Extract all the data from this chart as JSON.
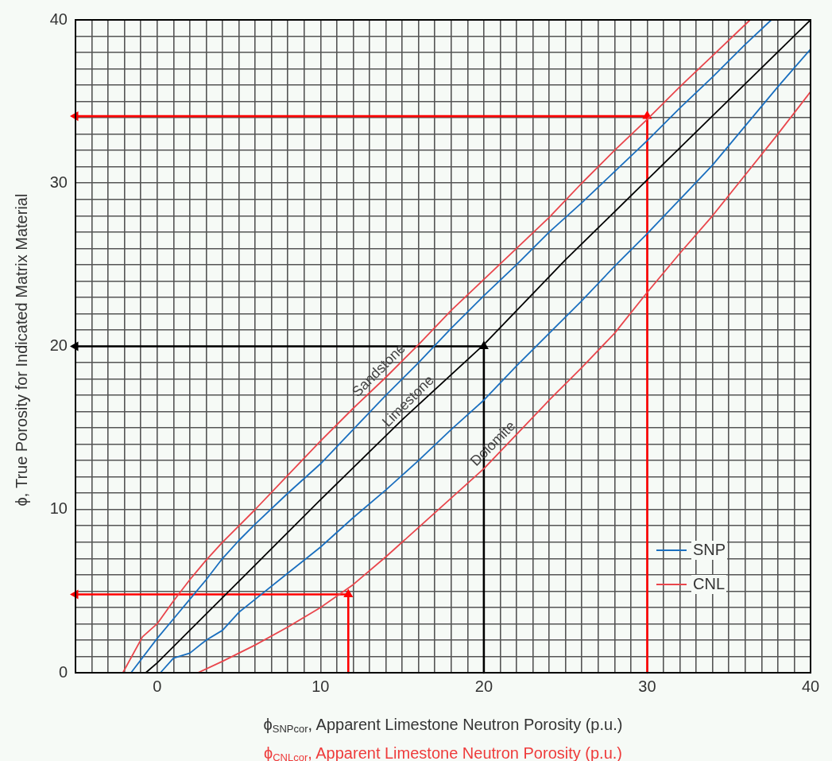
{
  "chart_data": {
    "type": "line",
    "xlabel": "ϕ$_{SNPcor}$, Apparent Limestone Neutron Porosity (p.u.)",
    "ylabel": "ϕ, True Porosity for Indicated Matrix Material",
    "xlim": [
      -5,
      40
    ],
    "ylim": [
      0,
      40
    ],
    "xticks": [
      {
        "value": -5,
        "label": null
      },
      {
        "value": -4,
        "label": null
      },
      {
        "value": -3,
        "label": null
      },
      {
        "value": -2,
        "label": null
      },
      {
        "value": -1,
        "label": null
      },
      0,
      {
        "value": 1,
        "label": null
      },
      {
        "value": 2,
        "label": null
      },
      {
        "value": 3,
        "label": null
      },
      {
        "value": 4,
        "label": null
      },
      {
        "value": 5,
        "label": null
      },
      {
        "value": 6,
        "label": null
      },
      {
        "value": 7,
        "label": null
      },
      {
        "value": 8,
        "label": null
      },
      {
        "value": 9,
        "label": null
      },
      10,
      {
        "value": 11,
        "label": null
      },
      {
        "value": 12,
        "label": null
      },
      {
        "value": 13,
        "label": null
      },
      {
        "value": 14,
        "label": null
      },
      {
        "value": 15,
        "label": null
      },
      {
        "value": 16,
        "label": null
      },
      {
        "value": 17,
        "label": null
      },
      {
        "value": 18,
        "label": null
      },
      {
        "value": 19,
        "label": null
      },
      20,
      {
        "value": 21,
        "label": null
      },
      {
        "value": 22,
        "label": null
      },
      {
        "value": 23,
        "label": null
      },
      {
        "value": 24,
        "label": null
      },
      {
        "value": 25,
        "label": null
      },
      {
        "value": 26,
        "label": null
      },
      {
        "value": 27,
        "label": null
      },
      {
        "value": 28,
        "label": null
      },
      {
        "value": 29,
        "label": null
      },
      30,
      {
        "value": 31,
        "label": null
      },
      {
        "value": 32,
        "label": null
      },
      {
        "value": 33,
        "label": null
      },
      {
        "value": 34,
        "label": null
      },
      {
        "value": 35,
        "label": null
      },
      {
        "value": 36,
        "label": null
      },
      {
        "value": 37,
        "label": null
      },
      {
        "value": 38,
        "label": null
      },
      {
        "value": 39,
        "label": null
      },
      40
    ],
    "yticks": [
      0,
      {
        "value": 1,
        "label": null
      },
      {
        "value": 2,
        "label": null
      },
      {
        "value": 3,
        "label": null
      },
      {
        "value": 4,
        "label": null
      },
      {
        "value": 5,
        "label": null
      },
      {
        "value": 6,
        "label": null
      },
      {
        "value": 7,
        "label": null
      },
      {
        "value": 8,
        "label": null
      },
      {
        "value": 9,
        "label": null
      },
      10,
      {
        "value": 11,
        "label": null
      },
      {
        "value": 12,
        "label": null
      },
      {
        "value": 13,
        "label": null
      },
      {
        "value": 14,
        "label": null
      },
      {
        "value": 15,
        "label": null
      },
      {
        "value": 16,
        "label": null
      },
      {
        "value": 17,
        "label": null
      },
      {
        "value": 18,
        "label": null
      },
      {
        "value": 19,
        "label": null
      },
      20,
      {
        "value": 21,
        "label": null
      },
      {
        "value": 22,
        "label": null
      },
      {
        "value": 23,
        "label": null
      },
      {
        "value": 24,
        "label": null
      },
      {
        "value": 25,
        "label": null
      },
      {
        "value": 26,
        "label": null
      },
      {
        "value": 27,
        "label": null
      },
      {
        "value": 28,
        "label": null
      },
      {
        "value": 29,
        "label": null
      },
      30,
      {
        "value": 31,
        "label": null
      },
      {
        "value": 32,
        "label": null
      },
      {
        "value": 33,
        "label": null
      },
      {
        "value": 34,
        "label": null
      },
      {
        "value": 35,
        "label": null
      },
      {
        "value": 36,
        "label": null
      },
      {
        "value": 37,
        "label": null
      },
      {
        "value": 38,
        "label": null
      },
      {
        "value": 39,
        "label": null
      },
      40
    ],
    "grid": true,
    "legend": "bottom right",
    "series": [
      {
        "name": "SNP",
        "color": "#1a6fbf",
        "x": [
          -1.6,
          0,
          1,
          2,
          3,
          4,
          5,
          6,
          8,
          10,
          12,
          14,
          16,
          18,
          20,
          22,
          24,
          26,
          28,
          30,
          32,
          34,
          36,
          37.6
        ],
        "values": [
          0,
          2.1,
          3.3,
          4.5,
          5.7,
          7,
          8.1,
          9.1,
          11,
          12.8,
          14.9,
          17,
          19,
          21.1,
          23.1,
          25,
          27,
          28.8,
          30.7,
          32.6,
          34.6,
          36.5,
          38.5,
          40
        ]
      },
      {
        "color": "#1a6fbf",
        "x": [
          0.2,
          1,
          2,
          3,
          4,
          5,
          6,
          8,
          10,
          12,
          14,
          16,
          18,
          20,
          22,
          24,
          26,
          28,
          30,
          32,
          34,
          36,
          38,
          40
        ],
        "values": [
          0,
          0.9,
          1.2,
          2,
          2.6,
          3.7,
          4.5,
          6.1,
          7.7,
          9.5,
          11.2,
          13,
          14.9,
          16.7,
          18.8,
          20.8,
          22.8,
          24.9,
          26.9,
          29,
          31.1,
          33.5,
          35.9,
          38.2
        ]
      },
      {
        "name": "CNL",
        "color": "#e9464c",
        "x": [
          -2.1,
          -0.9,
          0,
          1,
          2,
          3,
          4,
          5,
          6,
          8,
          10,
          12,
          14,
          16,
          18,
          20,
          22,
          24,
          26,
          28,
          30,
          32,
          34,
          36.3
        ],
        "values": [
          0,
          2.2,
          3,
          4.4,
          5.7,
          6.9,
          8,
          9,
          10,
          12.1,
          14.2,
          16.2,
          18.1,
          20.1,
          22.2,
          24.1,
          26,
          27.9,
          30,
          32,
          33.9,
          35.9,
          37.8,
          40
        ]
      },
      {
        "color": "#e9464c",
        "x": [
          2.5,
          4,
          5,
          6,
          8,
          10,
          12,
          14,
          16,
          18,
          20,
          22,
          24,
          26,
          28,
          30,
          32,
          34,
          36,
          38,
          40
        ],
        "values": [
          0,
          0.7,
          1.2,
          1.7,
          2.8,
          4,
          5.4,
          7.1,
          8.9,
          10.7,
          12.5,
          14.6,
          16.7,
          18.7,
          20.8,
          23.3,
          25.7,
          28,
          30.5,
          33,
          35.6
        ]
      },
      {
        "color": "#000000",
        "x": [
          -0.7,
          0,
          5,
          10,
          15,
          20,
          25,
          30,
          35,
          40
        ],
        "values": [
          0,
          0.6,
          5.6,
          10.6,
          15.5,
          20.1,
          25.3,
          30.2,
          35.1,
          40
        ]
      },
      {
        "color": "#ff0000",
        "marker": "triangle",
        "x": [
          30,
          30,
          -5
        ],
        "values": [
          0,
          34.1,
          34.1
        ]
      },
      {
        "color": "#ff0000",
        "marker": "triangle",
        "x": [
          11.7,
          11.7,
          -5
        ],
        "values": [
          0,
          4.8,
          4.8
        ]
      },
      {
        "color": "#000000",
        "marker": "triangle",
        "x": [
          20,
          20,
          -5
        ],
        "values": [
          0,
          20,
          20
        ]
      }
    ],
    "annotations": [
      {
        "text": "Sandstone",
        "x": 14,
        "y": 18.1
      },
      {
        "text": "Limestone",
        "x": 15.8,
        "y": 16.2
      },
      {
        "text": "Dolomite",
        "x": 21,
        "y": 13.6
      },
      "ϕ$_{CNLcor}$, Apparent Limestone Neutron Porosity (p.u.)"
    ]
  }
}
